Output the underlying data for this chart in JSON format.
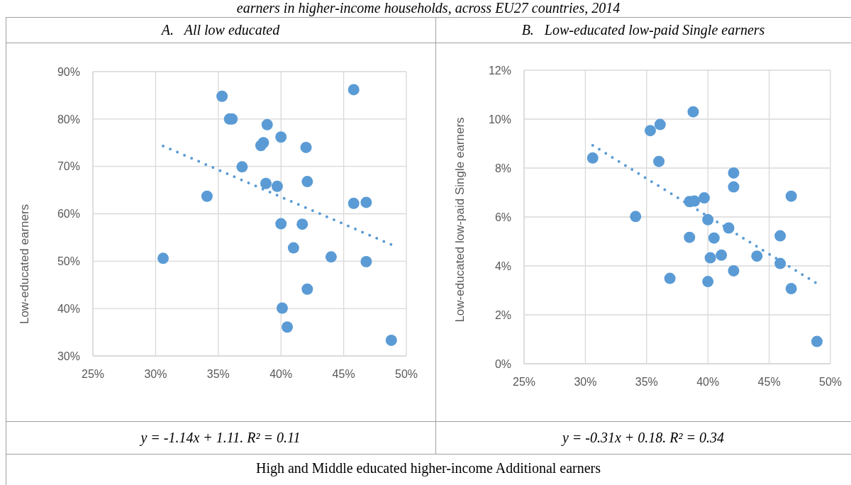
{
  "chart_data": [
    {
      "type": "other",
      "title": "earners in higher-income households, across EU27 countries, 2014"
    },
    {
      "type": "scatter",
      "title": "A.   All low educated",
      "xlabel": "High and Middle educated higher-income Additional earners",
      "ylabel": "Low-educated earners",
      "annotations": [
        "y = -1.14x + 1.11. R² = 0.11"
      ],
      "xlim": [
        25,
        50
      ],
      "xticks": [
        {
          "value": 25,
          "label": "25%"
        },
        {
          "value": 30,
          "label": "30%"
        },
        {
          "value": 35,
          "label": "35%"
        },
        {
          "value": 40,
          "label": "40%"
        },
        {
          "value": 45,
          "label": "45%"
        },
        {
          "value": 50,
          "label": "50%"
        }
      ],
      "ylim": [
        30,
        90
      ],
      "yticks": [
        {
          "value": 30,
          "label": "30%"
        },
        {
          "value": 40,
          "label": "40%"
        },
        {
          "value": 50,
          "label": "50%"
        },
        {
          "value": 60,
          "label": "60%"
        },
        {
          "value": 70,
          "label": "70%"
        },
        {
          "value": 80,
          "label": "80%"
        },
        {
          "value": 90,
          "label": "90%"
        }
      ],
      "grid": true,
      "marker": "circle",
      "series": [
        {
          "type": "scatter",
          "color": "#5b9bd5",
          "x": [
            35.3,
            45.8,
            35.9,
            36.1,
            38.9,
            40.0,
            38.6,
            38.4,
            42.0,
            36.9,
            38.8,
            39.7,
            42.1,
            34.1,
            45.8,
            46.8,
            40.0,
            41.7,
            41.0,
            30.6,
            44.0,
            46.8,
            42.1,
            40.1,
            40.5,
            48.8
          ],
          "values": [
            84.8,
            86.2,
            80.0,
            80.0,
            78.8,
            76.2,
            75.0,
            74.4,
            74.0,
            69.9,
            66.4,
            65.8,
            66.8,
            63.7,
            62.2,
            62.4,
            57.9,
            57.8,
            52.8,
            50.6,
            50.9,
            49.9,
            44.1,
            40.1,
            36.1,
            33.3
          ]
        },
        {
          "type": "line",
          "color": "#5b9bd5",
          "line_style": "dotted",
          "marker": "none",
          "x": [
            30.6,
            48.8
          ],
          "values": [
            74.3,
            53.5
          ]
        }
      ]
    },
    {
      "type": "scatter",
      "title": "B.   Low-educated low-paid Single earners",
      "ylabel": "Low-educated low-paid Single earners",
      "annotations": [
        "y = -0.31x + 0.18. R² = 0.34"
      ],
      "xlim": [
        25,
        50
      ],
      "xticks": [
        {
          "value": 25,
          "label": "25%"
        },
        {
          "value": 30,
          "label": "30%"
        },
        {
          "value": 35,
          "label": "35%"
        },
        {
          "value": 40,
          "label": "40%"
        },
        {
          "value": 45,
          "label": "45%"
        },
        {
          "value": 50,
          "label": "50%"
        }
      ],
      "ylim": [
        0,
        12
      ],
      "yticks": [
        {
          "value": 0,
          "label": "0%"
        },
        {
          "value": 2,
          "label": "2%"
        },
        {
          "value": 4,
          "label": "4%"
        },
        {
          "value": 6,
          "label": "6%"
        },
        {
          "value": 8,
          "label": "8%"
        },
        {
          "value": 10,
          "label": "10%"
        },
        {
          "value": 12,
          "label": "12%"
        }
      ],
      "grid": true,
      "marker": "circle",
      "series": [
        {
          "type": "scatter",
          "color": "#5b9bd5",
          "x": [
            38.8,
            35.3,
            36.1,
            30.6,
            36.0,
            42.1,
            42.1,
            46.8,
            38.5,
            38.9,
            39.7,
            34.1,
            40.0,
            41.7,
            38.5,
            40.5,
            45.9,
            40.2,
            41.1,
            44.0,
            45.9,
            42.1,
            36.9,
            40.0,
            46.8,
            48.9
          ],
          "values": [
            10.3,
            9.53,
            9.78,
            8.41,
            8.27,
            7.8,
            7.23,
            6.85,
            6.63,
            6.65,
            6.78,
            6.02,
            5.89,
            5.55,
            5.17,
            5.14,
            5.23,
            4.33,
            4.44,
            4.4,
            4.1,
            3.8,
            3.49,
            3.36,
            3.07,
            0.91
          ]
        },
        {
          "type": "line",
          "color": "#5b9bd5",
          "line_style": "dotted",
          "marker": "none",
          "x": [
            30.6,
            48.8
          ],
          "values": [
            8.93,
            3.31
          ]
        }
      ]
    }
  ]
}
